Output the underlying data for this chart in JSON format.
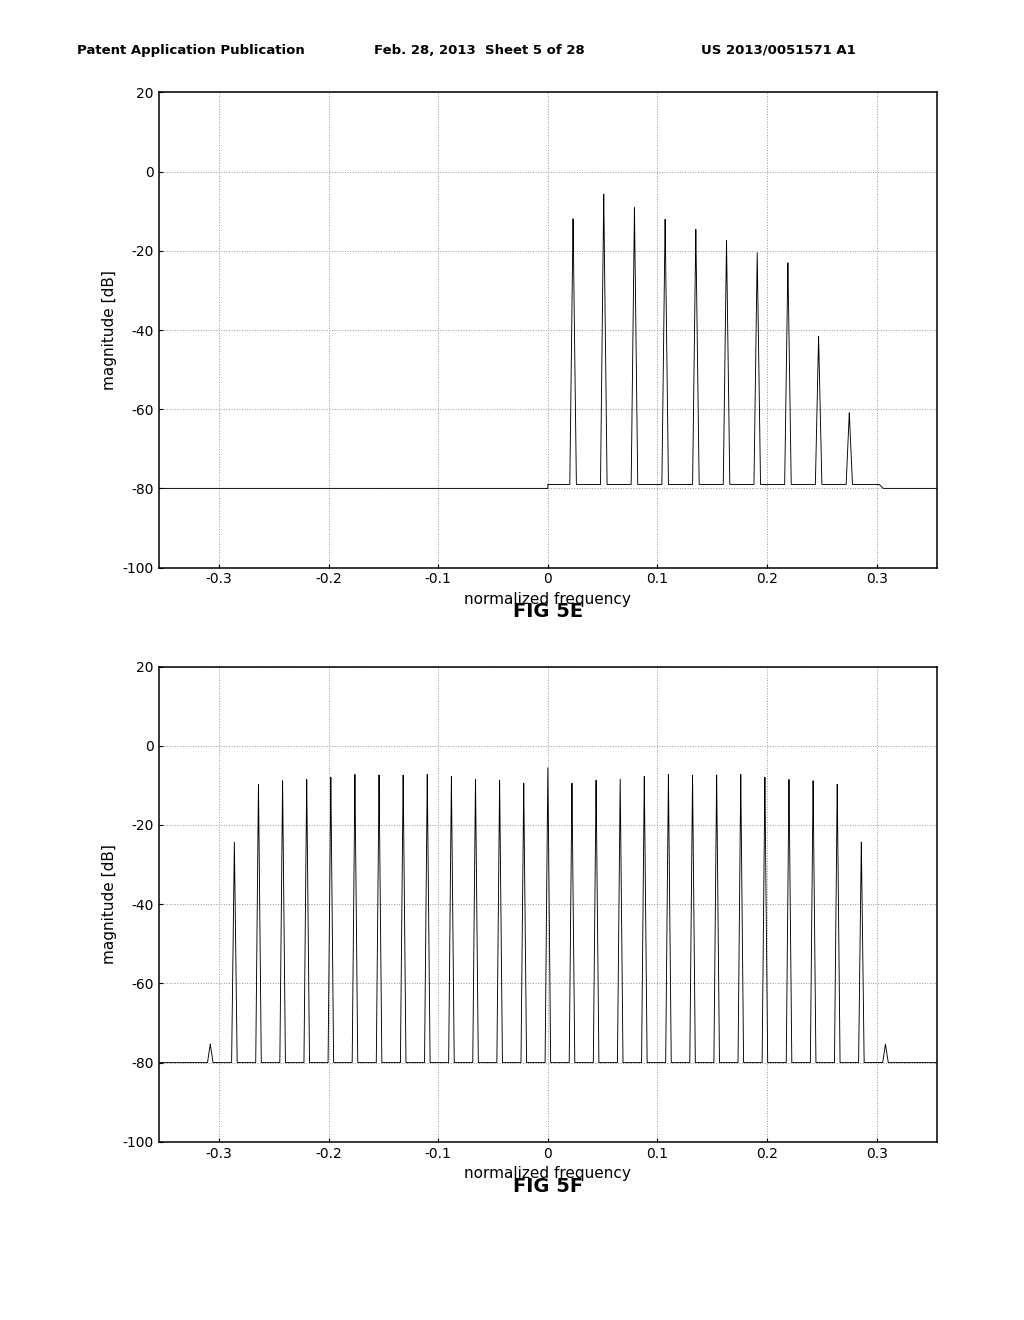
{
  "fig5e": {
    "title": "FIG 5E",
    "ylabel": "magnitude [dB]",
    "xlabel": "normalized frequency",
    "ylim": [
      -100,
      20
    ],
    "xlim": [
      -0.355,
      0.355
    ],
    "yticks": [
      -100,
      -80,
      -60,
      -40,
      -20,
      0,
      20
    ],
    "xticks": [
      -0.3,
      -0.2,
      -0.1,
      0.0,
      0.1,
      0.2,
      0.3
    ],
    "ytick_labels": [
      "-100",
      "-80",
      "-60",
      "-40",
      "-20",
      "0",
      "20"
    ],
    "xtick_labels": [
      "-0.3",
      "-0.2",
      "-0.1",
      "0",
      "0.1",
      "0.2",
      "0.3"
    ]
  },
  "fig5f": {
    "title": "FIG 5F",
    "ylabel": "magnitude [dB]",
    "xlabel": "normalized frequency",
    "ylim": [
      -100,
      20
    ],
    "xlim": [
      -0.355,
      0.355
    ],
    "yticks": [
      -100,
      -80,
      -60,
      -40,
      -20,
      0,
      20
    ],
    "xticks": [
      -0.3,
      -0.2,
      -0.1,
      0.0,
      0.1,
      0.2,
      0.3
    ],
    "ytick_labels": [
      "-100",
      "-80",
      "-60",
      "-40",
      "-20",
      "0",
      "20"
    ],
    "xtick_labels": [
      "-0.3",
      "-0.2",
      "-0.1",
      "0",
      "0.1",
      "0.2",
      "0.3"
    ]
  },
  "header_left": "Patent Application Publication",
  "header_center": "Feb. 28, 2013  Sheet 5 of 28",
  "header_right": "US 2013/0051571 A1"
}
